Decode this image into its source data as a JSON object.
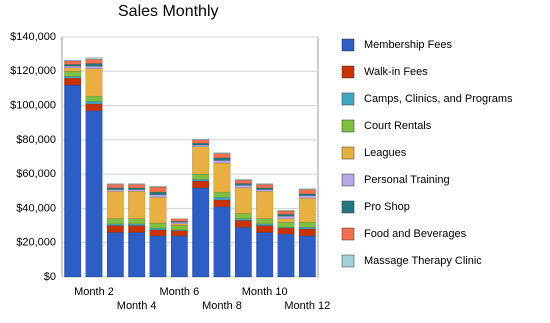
{
  "chart_data": {
    "type": "stacked_bar",
    "title": "Sales Monthly",
    "categories": [
      null,
      "Month 2",
      null,
      "Month 4",
      null,
      "Month 6",
      null,
      "Month 8",
      null,
      "Month 10",
      null,
      "Month 12"
    ],
    "series": [
      {
        "name": "Membership Fees",
        "color": "#2e5ec4",
        "values": [
          112000,
          97000,
          26000,
          26000,
          24000,
          24000,
          52000,
          41000,
          29000,
          26000,
          25000,
          24000
        ]
      },
      {
        "name": "Walk-in Fees",
        "color": "#c83200",
        "values": [
          4000,
          4000,
          4000,
          4000,
          3500,
          3000,
          4000,
          4000,
          4000,
          4000,
          3500,
          4000
        ]
      },
      {
        "name": "Camps, Clinics, and Programs",
        "color": "#40a8c0",
        "values": [
          1000,
          1500,
          1000,
          1000,
          1000,
          500,
          1000,
          1500,
          1000,
          1000,
          500,
          1000
        ]
      },
      {
        "name": "Court Rentals",
        "color": "#80c040",
        "values": [
          3000,
          3000,
          3000,
          3000,
          3000,
          2500,
          3000,
          3000,
          3000,
          3000,
          3000,
          3000
        ]
      },
      {
        "name": "Leagues",
        "color": "#e8b040",
        "values": [
          2000,
          16000,
          16000,
          16000,
          15000,
          1000,
          16000,
          17000,
          15000,
          16000,
          2000,
          14000
        ]
      },
      {
        "name": "Personal Training",
        "color": "#b8a8e8",
        "values": [
          1000,
          1500,
          1000,
          1000,
          1500,
          1000,
          1000,
          1500,
          1500,
          1000,
          1500,
          1500
        ]
      },
      {
        "name": "Pro Shop",
        "color": "#207880",
        "values": [
          1000,
          1500,
          1000,
          1000,
          1500,
          500,
          1000,
          1500,
          1000,
          1000,
          1000,
          1000
        ]
      },
      {
        "name": "Food and Beverages",
        "color": "#f07050",
        "values": [
          2000,
          2500,
          2000,
          2000,
          3000,
          1500,
          2000,
          2500,
          2000,
          2000,
          2000,
          2500
        ]
      },
      {
        "name": "Massage Therapy Clinic",
        "color": "#a0d0d8",
        "values": [
          500,
          1000,
          500,
          500,
          500,
          0,
          500,
          500,
          500,
          500,
          500,
          500
        ]
      }
    ],
    "ylim": [
      0,
      140000
    ],
    "yticks": [
      {
        "value": 0,
        "label": "$0"
      },
      {
        "value": 20000,
        "label": "$20,000"
      },
      {
        "value": 40000,
        "label": "$40,000"
      },
      {
        "value": 60000,
        "label": "$60,000"
      },
      {
        "value": 80000,
        "label": "$80,000"
      },
      {
        "value": 100000,
        "label": "$100,000"
      },
      {
        "value": 120000,
        "label": "$120,000"
      },
      {
        "value": 140000,
        "label": "$140,000"
      }
    ],
    "grid": true
  }
}
